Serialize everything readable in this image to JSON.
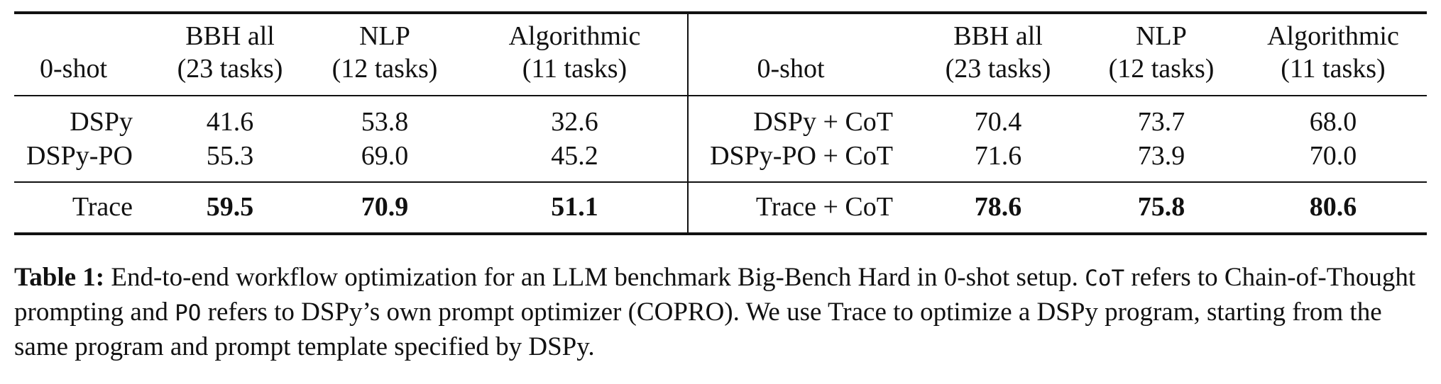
{
  "table": {
    "left_block": {
      "corner_label": "0-shot",
      "columns": [
        {
          "line1": "BBH all",
          "line2": "(23 tasks)"
        },
        {
          "line1": "NLP",
          "line2": "(12 tasks)"
        },
        {
          "line1": "Algorithmic",
          "line2": "(11 tasks)"
        }
      ],
      "rows": [
        {
          "method": "DSPy",
          "values": [
            "41.6",
            "53.8",
            "32.6"
          ]
        },
        {
          "method": "DSPy-PO",
          "values": [
            "55.3",
            "69.0",
            "45.2"
          ]
        },
        {
          "method": "Trace",
          "values": [
            "59.5",
            "70.9",
            "51.1"
          ]
        }
      ]
    },
    "right_block": {
      "corner_label": "0-shot",
      "columns": [
        {
          "line1": "BBH all",
          "line2": "(23 tasks)"
        },
        {
          "line1": "NLP",
          "line2": "(12 tasks)"
        },
        {
          "line1": "Algorithmic",
          "line2": "(11 tasks)"
        }
      ],
      "rows": [
        {
          "method": "DSPy + CoT",
          "values": [
            "70.4",
            "73.7",
            "68.0"
          ]
        },
        {
          "method": "DSPy-PO + CoT",
          "values": [
            "71.6",
            "73.9",
            "70.0"
          ]
        },
        {
          "method": "Trace + CoT",
          "values": [
            "78.6",
            "75.8",
            "80.6"
          ]
        }
      ]
    }
  },
  "caption": {
    "label": "Table 1:",
    "part1": " End-to-end workflow optimization for an LLM benchmark Big-Bench Hard in 0-shot setup. ",
    "code1": "CoT",
    "part2": " refers to Chain-of-Thought prompting and ",
    "code2": "PO",
    "part3": " refers to DSPy’s own prompt optimizer (COPRO). We use Trace to optimize a DSPy program, starting from the same program and prompt template specified by DSPy."
  }
}
